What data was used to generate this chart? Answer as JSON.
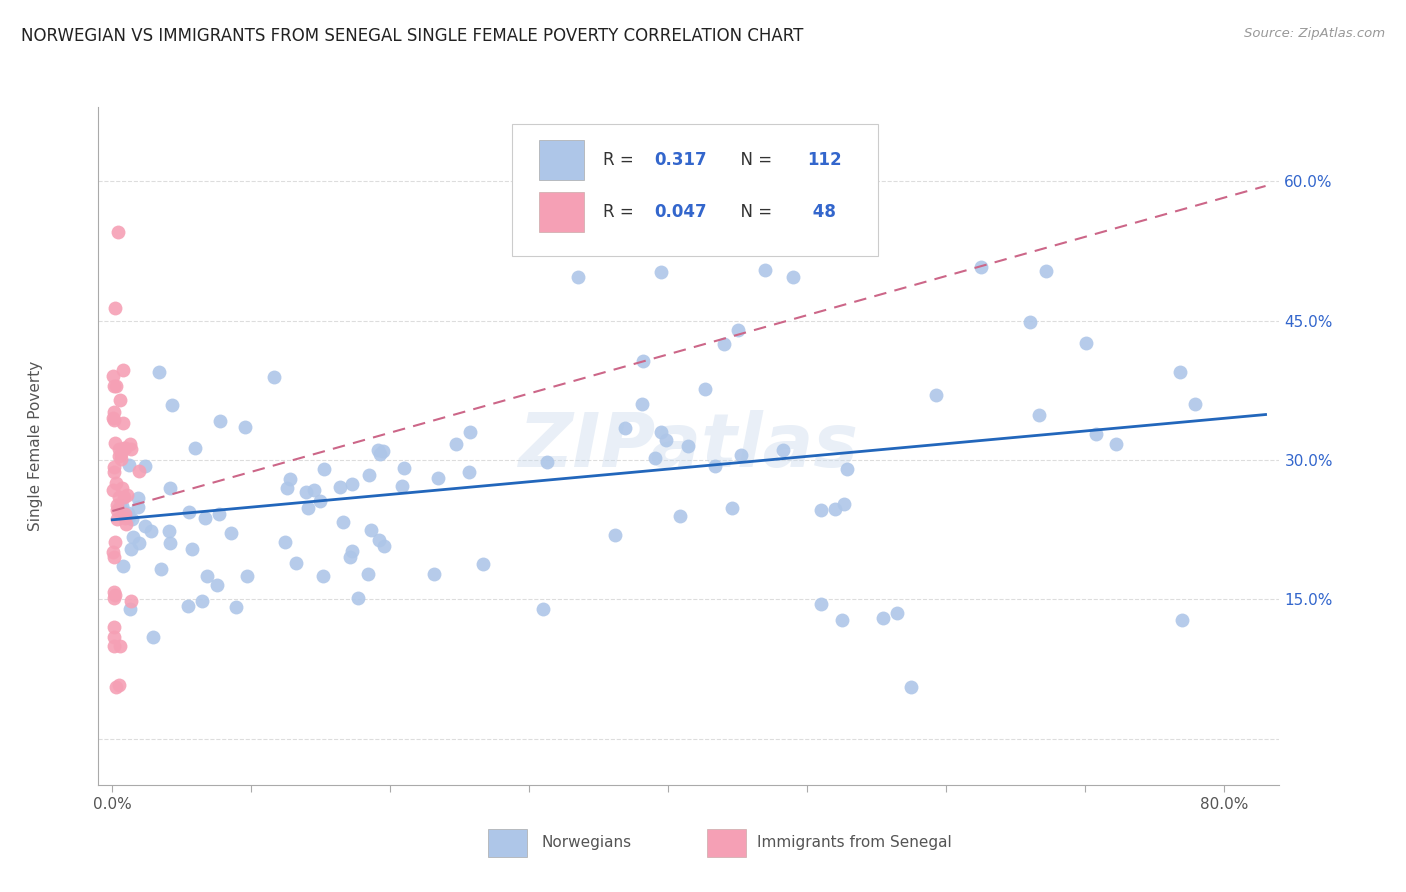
{
  "title": "NORWEGIAN VS IMMIGRANTS FROM SENEGAL SINGLE FEMALE POVERTY CORRELATION CHART",
  "source": "Source: ZipAtlas.com",
  "ylabel": "Single Female Poverty",
  "xlim": [
    -0.01,
    0.84
  ],
  "ylim": [
    -0.05,
    0.68
  ],
  "norwegian_R": 0.317,
  "norwegian_N": 112,
  "senegal_R": 0.047,
  "senegal_N": 48,
  "blue_color": "#aec6e8",
  "blue_line_color": "#2266bb",
  "pink_color": "#f5a0b5",
  "pink_line_color": "#cc6688",
  "legend_label1": "Norwegians",
  "legend_label2": "Immigrants from Senegal",
  "background_color": "#ffffff",
  "grid_color": "#dddddd",
  "watermark": "ZIPatlas",
  "text_color_blue": "#3366cc",
  "text_color_dark": "#333333",
  "x_tick_positions": [
    0.0,
    0.1,
    0.2,
    0.3,
    0.4,
    0.5,
    0.6,
    0.7,
    0.8
  ],
  "x_tick_labels": [
    "0.0%",
    "",
    "",
    "",
    "",
    "",
    "",
    "",
    "80.0%"
  ],
  "y_tick_positions": [
    0.0,
    0.15,
    0.3,
    0.45,
    0.6
  ],
  "y_tick_labels": [
    "",
    "15.0%",
    "30.0%",
    "45.0%",
    "60.0%"
  ]
}
